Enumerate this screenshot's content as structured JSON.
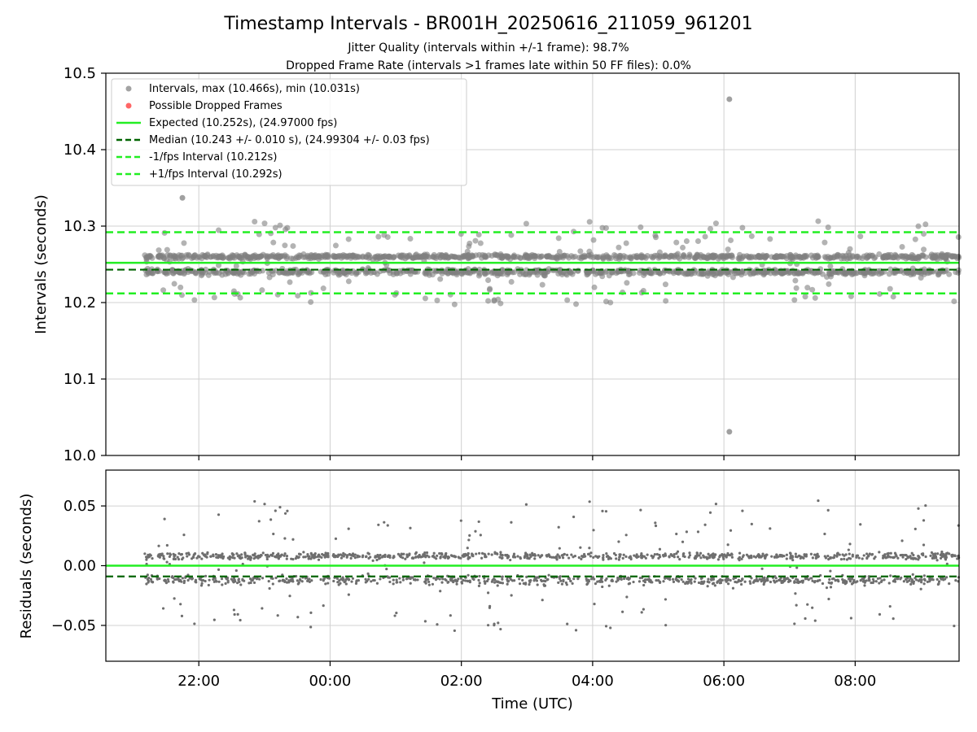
{
  "chart_data": [
    {
      "type": "scatter",
      "title": "Timestamp Intervals - BR001H_20250616_211059_961201",
      "subtitle_lines": [
        "Jitter Quality (intervals within +/-1 frame): 98.7%",
        "Dropped Frame Rate (intervals >1 frames late within 50 FF files): 0.0%"
      ],
      "ylabel": "Intervals (seconds)",
      "ylim": [
        10.0,
        10.5
      ],
      "yticks": [
        "10.0",
        "10.1",
        "10.2",
        "10.3",
        "10.4",
        "10.5"
      ],
      "grid": true,
      "legend_position": "upper-left",
      "legend": [
        "Intervals, max (10.466s), min (10.031s)",
        "Possible Dropped Frames",
        "Expected (10.252s), (24.97000 fps)",
        "Median (10.243 +/- 0.010 s), (24.99304 +/- 0.03 fps)",
        "-1/fps Interval (10.212s)",
        "+1/fps Interval (10.292s)"
      ],
      "reference_lines": {
        "expected": 10.252,
        "median": 10.243,
        "minus_one_fps": 10.212,
        "plus_one_fps": 10.292
      },
      "point_bands": [
        10.24,
        10.26
      ],
      "outliers": [
        {
          "t": "21:45",
          "y": 10.337
        },
        {
          "t": "06:05",
          "y": 10.466
        },
        {
          "t": "06:05",
          "y": 10.031
        }
      ],
      "series": [
        {
          "name": "Intervals",
          "color": "#8c8c8c"
        },
        {
          "name": "Possible Dropped Frames",
          "color": "#ff6666"
        }
      ]
    },
    {
      "type": "scatter",
      "ylabel": "Residuals (seconds)",
      "xlabel": "Time (UTC)",
      "ylim": [
        -0.08,
        0.08
      ],
      "yticks": [
        "0.05",
        "0.00",
        "−0.05"
      ],
      "xticks": [
        "22:00",
        "00:00",
        "02:00",
        "04:00",
        "06:00",
        "08:00"
      ],
      "x_range": [
        "20:35",
        "09:35"
      ],
      "data_range": [
        "21:10",
        "09:35"
      ],
      "reference_lines": {
        "expected": 0.0,
        "median": -0.009
      },
      "grid": true
    }
  ],
  "colors": {
    "points": "#808080",
    "expected": "#22ee22",
    "median": "#006400",
    "fps_bounds": "#22ee22"
  }
}
